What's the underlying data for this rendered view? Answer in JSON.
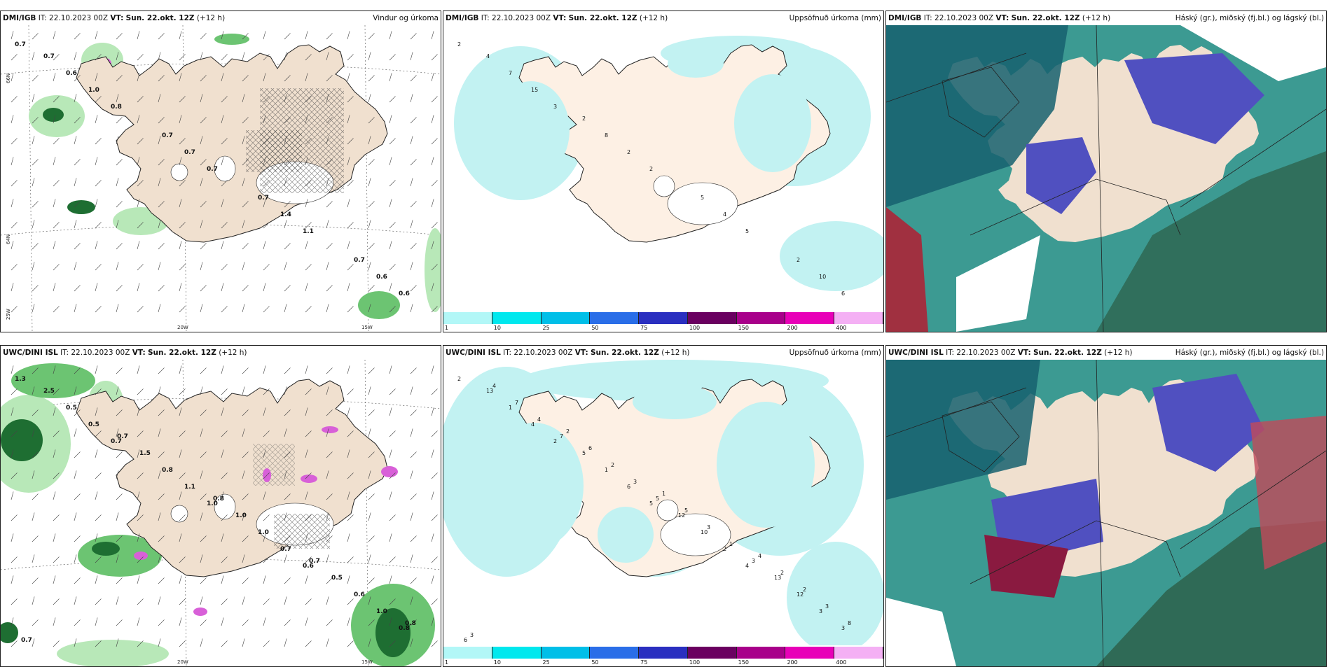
{
  "panels": [
    {
      "id": "p1",
      "model": "DMI/IGB",
      "it_label": "IT:",
      "it": "22.10.2023 00Z",
      "vt_label": "VT:",
      "vt": "Sun. 22.okt. 12Z",
      "lead": "(+12 h)",
      "title": "Vindur og úrkoma"
    },
    {
      "id": "p2",
      "model": "DMI/IGB",
      "it_label": "IT:",
      "it": "22.10.2023 00Z",
      "vt_label": "VT:",
      "vt": "Sun. 22.okt. 12Z",
      "lead": "(+12 h)",
      "title": "Uppsöfnuð úrkoma (mm)"
    },
    {
      "id": "p3",
      "model": "DMI/IGB",
      "it_label": "IT:",
      "it": "22.10.2023 00Z",
      "vt_label": "VT:",
      "vt": "Sun. 22.okt. 12Z",
      "lead": "(+12 h)",
      "title": "Háský (gr.), miðský (fj.bl.) og lágský (bl.)"
    },
    {
      "id": "p4",
      "model": "UWC/DINI ISL",
      "it_label": "IT:",
      "it": "22.10.2023 00Z",
      "vt_label": "VT:",
      "vt": "Sun. 22.okt. 12Z",
      "lead": "(+12 h)",
      "title": ""
    },
    {
      "id": "p5",
      "model": "UWC/DINI ISL",
      "it_label": "IT:",
      "it": "22.10.2023 00Z",
      "vt_label": "VT:",
      "vt": "Sun. 22.okt. 12Z",
      "lead": "(+12 h)",
      "title": "Uppsöfnuð úrkoma (mm)"
    },
    {
      "id": "p6",
      "model": "UWC/DINI ISL",
      "it_label": "IT:",
      "it": "22.10.2023 00Z",
      "vt_label": "VT:",
      "vt": "Sun. 22.okt. 12Z",
      "lead": "(+12 h)",
      "title": "Háský (gr.), miðský (fj.bl.) og lágský (bl.)"
    }
  ],
  "axes": {
    "lon_w20": "20W",
    "lon_w15": "15W",
    "lon_w25": "25W",
    "lat_n66": "66N",
    "lat_n64": "64N"
  },
  "colorbar": {
    "labels": [
      "1",
      "10",
      "25",
      "50",
      "75",
      "100",
      "150",
      "200",
      "400"
    ],
    "colors": [
      "#b2f7f7",
      "#00e8ee",
      "#00bfe8",
      "#2a6ee8",
      "#2a2fc0",
      "#6a0060",
      "#a8008a",
      "#e800b8",
      "#f4b0f4"
    ]
  },
  "wind_precip_dmi_labels": [
    "0.7",
    "0.8",
    "0.7",
    "1.1",
    "0.6",
    "1.0",
    "0.7",
    "1.4",
    "0.6",
    "0.6",
    "0.7",
    "0.7",
    "0.7",
    "0.7"
  ],
  "wind_precip_uwc_labels": [
    "1.3",
    "0.7",
    "1.0",
    "0.6",
    "0.8",
    "0.5",
    "1.1",
    "0.7",
    "1.0",
    "0.5",
    "0.8",
    "1.0",
    "0.6",
    "2.5",
    "1.5",
    "1.0",
    "0.5",
    "0.7",
    "0.7",
    "0.8",
    "0.7",
    "0.8"
  ],
  "accum_dmi_labels": [
    "2",
    "3",
    "2",
    "5",
    "6",
    "15",
    "2",
    "4",
    "10",
    "7",
    "8",
    "5",
    "2",
    "4",
    "2"
  ],
  "accum_uwc_labels": [
    "2",
    "2",
    "5",
    "4",
    "3",
    "4",
    "6",
    "2",
    "3",
    "1",
    "1",
    "10",
    "12",
    "13",
    "5",
    "12",
    "13",
    "6",
    "7",
    "5",
    "3",
    "8",
    "4",
    "3",
    "1",
    "3",
    "7",
    "2",
    "3",
    "2",
    "4",
    "6",
    "5",
    "2",
    "3",
    "2",
    "1",
    "4"
  ],
  "colors": {
    "land": "#f0e0cf",
    "land_alt": "#fdf0e4",
    "coast": "#222222",
    "precip_light": "#c2f2f2",
    "green_light": "#b8e8b8",
    "green_mid": "#6cc472",
    "green_dark": "#1e6e32",
    "magenta": "#d860d8",
    "cloud_low": "#16606e",
    "cloud_mid": "#3c9a92",
    "cloud_high": "#5050c0",
    "cloud_red": "#a03040"
  }
}
